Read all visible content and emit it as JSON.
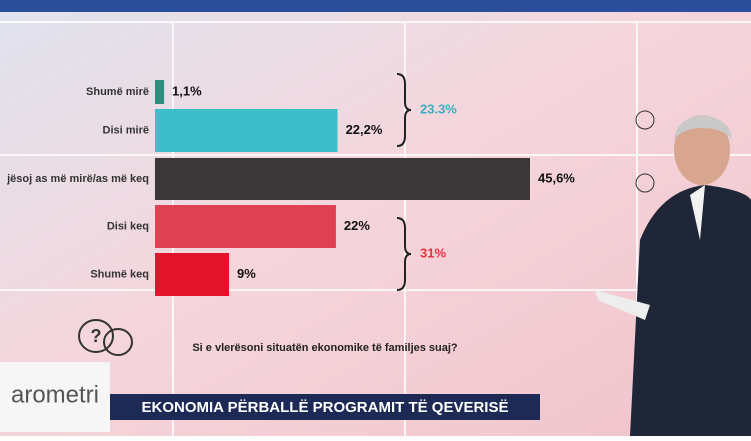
{
  "chart_data": {
    "type": "hbar",
    "categories": [
      "Shumë mirë",
      "Disi mirë",
      "jësoj as më mirë/as më keq",
      "Disi keq",
      "Shumë keq"
    ],
    "values": [
      1.1,
      22.2,
      45.6,
      22,
      9
    ],
    "value_labels": [
      "1,1%",
      "22,2%",
      "45,6%",
      "22%",
      "9%"
    ],
    "colors": [
      "#2f8f7e",
      "#3dbfca",
      "#3b3738",
      "#df4152",
      "#e2142c"
    ],
    "annotations": [
      {
        "text": "23.3%",
        "color": "#3aaebd"
      },
      {
        "text": "31%",
        "color": "#e03444"
      }
    ],
    "question": "Si e vlerësoni situatën ekonomike të familjes suaj?"
  },
  "logo": "arometri",
  "banner": "EKONOMIA PËRBALLË PROGRAMIT TË QEVERISË"
}
